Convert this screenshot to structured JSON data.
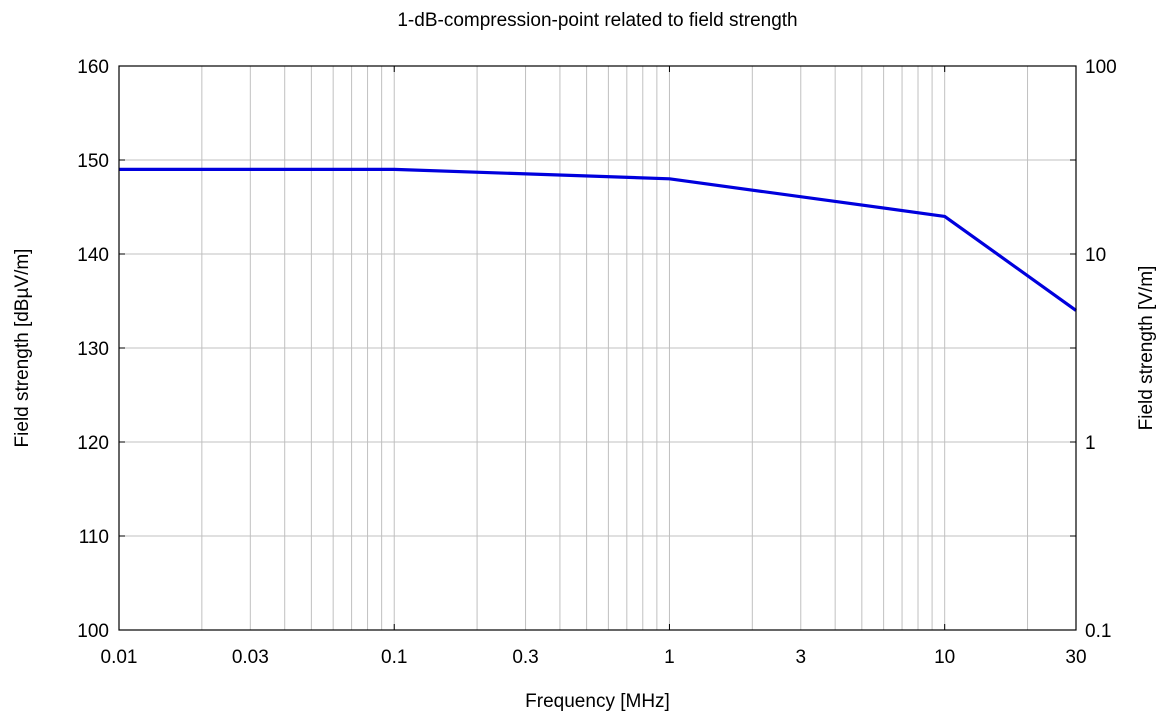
{
  "chart_data": {
    "type": "line",
    "title": "1-dB-compression-point related to field strength",
    "xlabel": "Frequency [MHz]",
    "ylabel": "Field strength [dBµV/m]",
    "y2label": "Field strength [V/m]",
    "x_scale": "log",
    "xlim": [
      0.01,
      30
    ],
    "ylim": [
      100,
      160
    ],
    "y2_scale": "log",
    "y2lim": [
      0.1,
      100
    ],
    "grid": true,
    "x_ticks": [
      0.01,
      0.03,
      0.1,
      0.3,
      1,
      3,
      10,
      30
    ],
    "x_tick_labels": [
      "0.01",
      "0.03",
      "0.1",
      "0.3",
      "1",
      "3",
      "10",
      "30"
    ],
    "y_ticks": [
      100,
      110,
      120,
      130,
      140,
      150,
      160
    ],
    "y_tick_labels": [
      "100",
      "110",
      "120",
      "130",
      "140",
      "150",
      "160"
    ],
    "y2_ticks": [
      0.1,
      1,
      10,
      100
    ],
    "y2_tick_labels": [
      "0.1",
      "1",
      "10",
      "100"
    ],
    "series": [
      {
        "color": "#0000dd",
        "x": [
          0.01,
          0.1,
          1,
          10,
          30
        ],
        "y": [
          149,
          149,
          148,
          144,
          134
        ]
      }
    ]
  }
}
